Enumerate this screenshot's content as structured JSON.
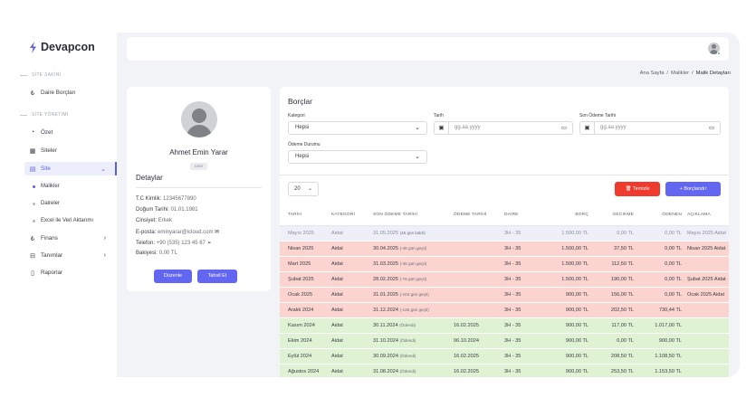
{
  "app": {
    "name": "Devapcon"
  },
  "colors": {
    "accent": "#5b5fe0",
    "danger": "#ef3b2d",
    "overdue_row": "#fbd3cf",
    "paid_row": "#dff3d4",
    "current_row": "#eeeff9"
  },
  "sidebar": {
    "section1": "SİTE SAKİNİ",
    "resident_item": {
      "icon": "lira-icon",
      "label": "Daire Borçları"
    },
    "section2": "SİTE YÖNETİMİ",
    "items": [
      {
        "icon": "dashboard-icon",
        "label": "Özet"
      },
      {
        "icon": "building-icon",
        "label": "Siteler"
      },
      {
        "icon": "site-icon",
        "label": "Site"
      }
    ],
    "subitems": [
      "Malikler",
      "Daireler",
      "Excel ile Veri Aktarımı"
    ],
    "items2": [
      {
        "icon": "lira-icon",
        "label": "Finans"
      },
      {
        "icon": "definitions-icon",
        "label": "Tanımlar"
      },
      {
        "icon": "report-icon",
        "label": "Raporlar"
      }
    ]
  },
  "breadcrumb": [
    "Ana Sayfa",
    "Malikler",
    "Malik Detayları"
  ],
  "profile": {
    "name": "Ahmet Emin Yarar",
    "role": "User",
    "details_title": "Detaylar",
    "tc_label": "T.C Kimlik:",
    "tc": "12345677890",
    "dob_label": "Doğum Tarihi:",
    "dob": "01.01.1981",
    "gender_label": "Cinsiyet:",
    "gender": "Erkek",
    "email_label": "E-posta:",
    "email": "eminyarar@icloud.com",
    "phone_label": "Telefon:",
    "phone": "+90 (535) 123 45 67",
    "balance_label": "Bakiyesi:",
    "balance": "0,00 TL",
    "edit_button": "Düzenle",
    "collect_button": "Tahsil Et"
  },
  "debts": {
    "title": "Borçlar",
    "filters": {
      "category_label": "Kategori",
      "category_value": "Hepsi",
      "date_label": "Tarih",
      "date_placeholder": "gg.aa.yyyy",
      "due_label": "Son Ödeme Tarihi",
      "due_placeholder": "gg.aa.yyyy",
      "status_label": "Ödeme Durumu",
      "status_value": "Hepsi"
    },
    "page_size": "20",
    "clear_button": "Temizle",
    "add_button": "Borçlandır",
    "columns": [
      "TARİH",
      "KATEGORİ",
      "SON ÖDEME TARİHİ",
      "ÖDEME TARİHİ",
      "DAİRE",
      "BORÇ",
      "GECİKME",
      "ÖDENEN",
      "AÇIKLAMA"
    ],
    "rows": [
      {
        "status": "current",
        "date": "Mayıs 2025",
        "category": "Aidat",
        "due": "31.05.2025",
        "note": "(15 gün kaldı)",
        "paid_date": "",
        "unit": "3H - 35",
        "debt": "1.500,00 TL",
        "late": "0,00 TL",
        "paid": "0,00 TL",
        "desc": "Mayıs 2025 Aidat"
      },
      {
        "status": "overdue",
        "date": "Nisan 2025",
        "category": "Aidat",
        "due": "30.04.2025",
        "note": "(-45 gün geçti)",
        "paid_date": "",
        "unit": "3H - 35",
        "debt": "1.500,00 TL",
        "late": "37,50 TL",
        "paid": "0,00 TL",
        "desc": "Nisan 2025 Aidat"
      },
      {
        "status": "overdue",
        "date": "Mart 2025",
        "category": "Aidat",
        "due": "31.03.2025",
        "note": "(-45 gün geçti)",
        "paid_date": "",
        "unit": "3H - 35",
        "debt": "1.500,00 TL",
        "late": "112,50 TL",
        "paid": "0,00 TL",
        "desc": ""
      },
      {
        "status": "overdue",
        "date": "Şubat 2025",
        "category": "Aidat",
        "due": "28.02.2025",
        "note": "(-76 gün geçti)",
        "paid_date": "",
        "unit": "3H - 35",
        "debt": "1.500,00 TL",
        "late": "190,00 TL",
        "paid": "0,00 TL",
        "desc": "Şubat 2025 Aidat"
      },
      {
        "status": "overdue",
        "date": "Ocak 2025",
        "category": "Aidat",
        "due": "31.01.2025",
        "note": "(-104 gün geçti)",
        "paid_date": "",
        "unit": "3H - 35",
        "debt": "900,00 TL",
        "late": "156,00 TL",
        "paid": "0,00 TL",
        "desc": "Ocak 2025 Aidat"
      },
      {
        "status": "overdue",
        "date": "Aralık 2024",
        "category": "Aidat",
        "due": "31.12.2024",
        "note": "(-135 gün geçti)",
        "paid_date": "",
        "unit": "3H - 35",
        "debt": "900,00 TL",
        "late": "202,50 TL",
        "paid": "730,44 TL",
        "desc": ""
      },
      {
        "status": "paid",
        "date": "Kasım 2024",
        "category": "Aidat",
        "due": "30.11.2024",
        "note": "(Ödendi)",
        "paid_date": "16.02.2025",
        "unit": "3H - 35",
        "debt": "900,00 TL",
        "late": "117,00 TL",
        "paid": "1.017,00 TL",
        "desc": ""
      },
      {
        "status": "paid",
        "date": "Ekim 2024",
        "category": "Aidat",
        "due": "31.10.2024",
        "note": "(Ödendi)",
        "paid_date": "06.10.2024",
        "unit": "3H - 35",
        "debt": "900,00 TL",
        "late": "0,00 TL",
        "paid": "900,00 TL",
        "desc": ""
      },
      {
        "status": "paid",
        "date": "Eylül 2024",
        "category": "Aidat",
        "due": "30.09.2024",
        "note": "(Ödendi)",
        "paid_date": "16.02.2025",
        "unit": "3H - 35",
        "debt": "900,00 TL",
        "late": "208,50 TL",
        "paid": "1.108,50 TL",
        "desc": ""
      },
      {
        "status": "paid",
        "date": "Ağustos 2024",
        "category": "Aidat",
        "due": "31.08.2024",
        "note": "(Ödendi)",
        "paid_date": "16.02.2025",
        "unit": "3H - 35",
        "debt": "900,00 TL",
        "late": "253,50 TL",
        "paid": "1.153,50 TL",
        "desc": ""
      }
    ]
  }
}
